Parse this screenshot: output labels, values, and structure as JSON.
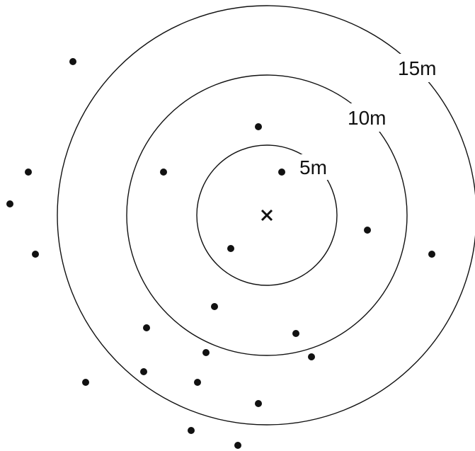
{
  "rings": [
    {
      "radius_m": 5,
      "label": "5m"
    },
    {
      "radius_m": 10,
      "label": "10m"
    },
    {
      "radius_m": 15,
      "label": "15m"
    }
  ],
  "center_marker": "×",
  "colors": {
    "ink": "#111111",
    "background": "#ffffff"
  }
}
